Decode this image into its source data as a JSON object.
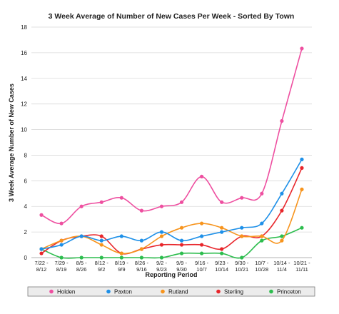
{
  "chart_data": {
    "type": "line",
    "title": "3 Week Average of Number of New Cases Per Week - Sorted By Town",
    "xlabel": "Reporting Period",
    "ylabel": "3 Week Average Number of New Cases",
    "ylim": [
      0,
      18
    ],
    "yticks": [
      0,
      2,
      4,
      6,
      8,
      10,
      12,
      14,
      16,
      18
    ],
    "grid": true,
    "legend_position": "bottom",
    "categories": [
      [
        "7/22 -",
        "8/12"
      ],
      [
        "7/29 -",
        "8/19"
      ],
      [
        "8/5 -",
        "8/26"
      ],
      [
        "8/12 -",
        "9/2"
      ],
      [
        "8/19 -",
        "9/9"
      ],
      [
        "8/26 -",
        "9/16"
      ],
      [
        "9/2 -",
        "9/23"
      ],
      [
        "9/9 -",
        "9/30"
      ],
      [
        "9/16 -",
        "10/7"
      ],
      [
        "9/23 -",
        "10/14"
      ],
      [
        "9/30 -",
        "10/21"
      ],
      [
        "10/7 -",
        "10/28"
      ],
      [
        "10/14 -",
        "11/4"
      ],
      [
        "10/21 -",
        "11/11"
      ]
    ],
    "series": [
      {
        "name": "Holden",
        "color": "#ee4fa0",
        "values": [
          3.33,
          2.67,
          4.0,
          4.33,
          4.67,
          3.67,
          4.0,
          4.33,
          6.33,
          4.33,
          4.67,
          5.0,
          10.67,
          16.33
        ]
      },
      {
        "name": "Paxton",
        "color": "#1e90e8",
        "values": [
          0.67,
          1.0,
          1.67,
          1.33,
          1.67,
          1.33,
          2.0,
          1.33,
          1.67,
          2.0,
          2.33,
          2.67,
          5.0,
          7.67
        ]
      },
      {
        "name": "Rutland",
        "color": "#f7941d",
        "values": [
          0.67,
          1.33,
          1.67,
          1.0,
          0.33,
          0.67,
          1.67,
          2.33,
          2.67,
          2.33,
          1.67,
          1.67,
          1.33,
          5.33
        ]
      },
      {
        "name": "Sterling",
        "color": "#e8262b",
        "values": [
          0.33,
          1.33,
          1.67,
          1.67,
          0.33,
          0.67,
          1.0,
          1.0,
          1.0,
          0.67,
          1.67,
          1.67,
          3.67,
          7.0
        ]
      },
      {
        "name": "Princeton",
        "color": "#2dbd4e",
        "values": [
          0.67,
          0.0,
          0.0,
          0.0,
          0.0,
          0.0,
          0.0,
          0.33,
          0.33,
          0.33,
          0.0,
          1.33,
          1.67,
          2.33
        ]
      }
    ]
  }
}
